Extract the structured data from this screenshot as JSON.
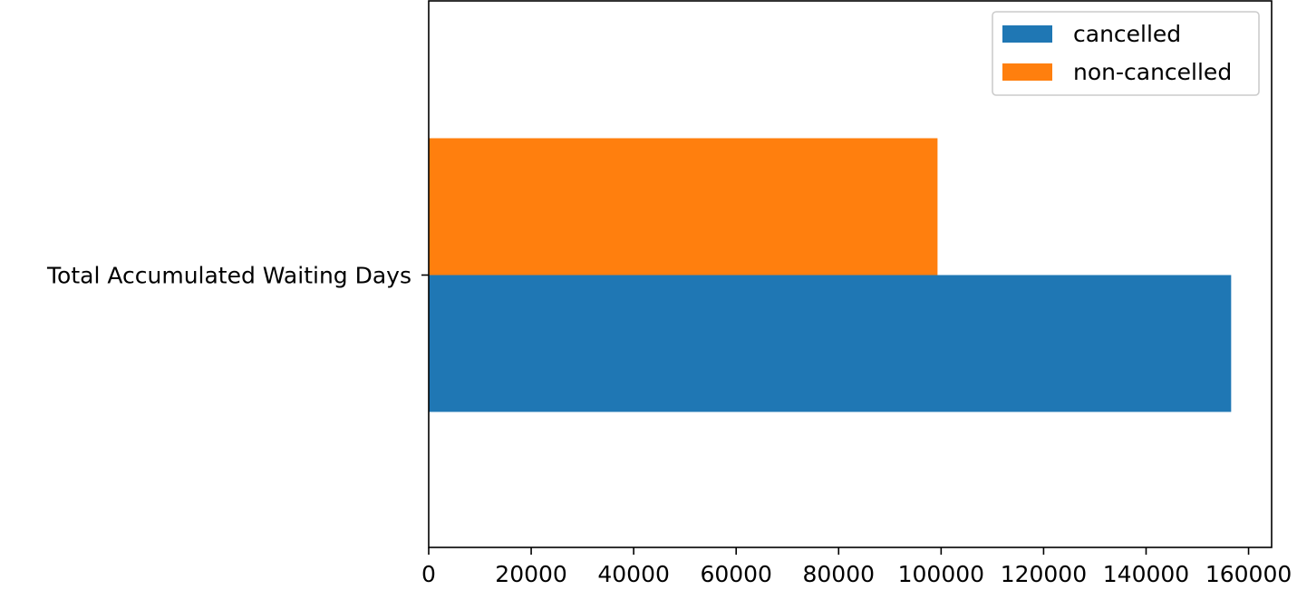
{
  "chart_data": {
    "type": "bar",
    "orientation": "horizontal",
    "categories": [
      "Total Accumulated Waiting Days"
    ],
    "series": [
      {
        "name": "cancelled",
        "values": [
          156600
        ],
        "color": "#1f77b4"
      },
      {
        "name": "non-cancelled",
        "values": [
          99300
        ],
        "color": "#ff7f0e"
      }
    ],
    "xlim": [
      0,
      164500
    ],
    "x_ticks": [
      0,
      20000,
      40000,
      60000,
      80000,
      100000,
      120000,
      140000,
      160000
    ],
    "x_tick_labels": [
      "0",
      "20000",
      "40000",
      "60000",
      "80000",
      "100000",
      "120000",
      "140000",
      "160000"
    ],
    "grid": false,
    "legend_position": "top-right",
    "title": "",
    "xlabel": "",
    "ylabel": ""
  }
}
